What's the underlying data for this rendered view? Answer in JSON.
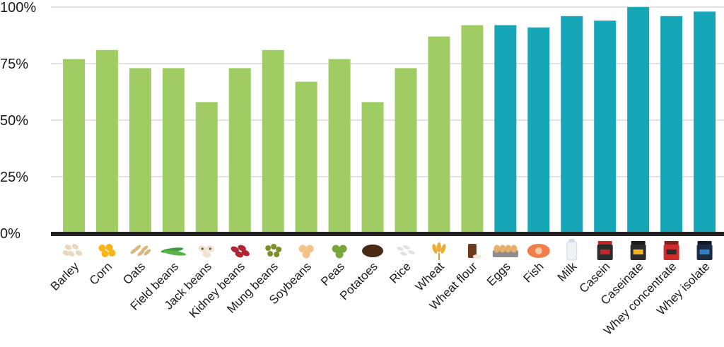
{
  "chart_data": {
    "type": "bar",
    "title": "",
    "xlabel": "",
    "ylabel": "",
    "ylim": [
      0,
      100
    ],
    "y_ticks": [
      0,
      25,
      50,
      75,
      100
    ],
    "y_tick_labels": [
      "0%",
      "25%",
      "50%",
      "75%",
      "100%"
    ],
    "grid": true,
    "legend": "none",
    "categories": [
      "Barley",
      "Corn",
      "Oats",
      "Field beans",
      "Jack beans",
      "Kidney beans",
      "Mung beans",
      "Soybeans",
      "Peas",
      "Potatoes",
      "Rice",
      "Wheat",
      "Wheat flour",
      "Eggs",
      "Fish",
      "Milk",
      "Casein",
      "Caseinate",
      "Whey concentrate",
      "Whey isolate"
    ],
    "values": [
      77,
      81,
      73,
      73,
      58,
      73,
      81,
      67,
      77,
      58,
      73,
      87,
      92,
      92,
      91,
      96,
      94,
      100,
      96,
      98
    ],
    "groups": [
      "plant",
      "plant",
      "plant",
      "plant",
      "plant",
      "plant",
      "plant",
      "plant",
      "plant",
      "plant",
      "plant",
      "plant",
      "plant",
      "animal",
      "animal",
      "animal",
      "animal",
      "animal",
      "animal",
      "animal"
    ],
    "colors": {
      "plant": "#a0cd63",
      "animal": "#15a7b8",
      "axis": "#222222",
      "grid": "#c4c4c4"
    },
    "icons": [
      "barley-icon",
      "corn-icon",
      "oats-icon",
      "field-beans-icon",
      "jack-beans-icon",
      "kidney-beans-icon",
      "mung-beans-icon",
      "soybeans-icon",
      "peas-icon",
      "potatoes-icon",
      "rice-icon",
      "wheat-icon",
      "wheat-flour-icon",
      "eggs-icon",
      "fish-icon",
      "milk-icon",
      "casein-icon",
      "caseinate-icon",
      "whey-concentrate-icon",
      "whey-isolate-icon"
    ]
  }
}
